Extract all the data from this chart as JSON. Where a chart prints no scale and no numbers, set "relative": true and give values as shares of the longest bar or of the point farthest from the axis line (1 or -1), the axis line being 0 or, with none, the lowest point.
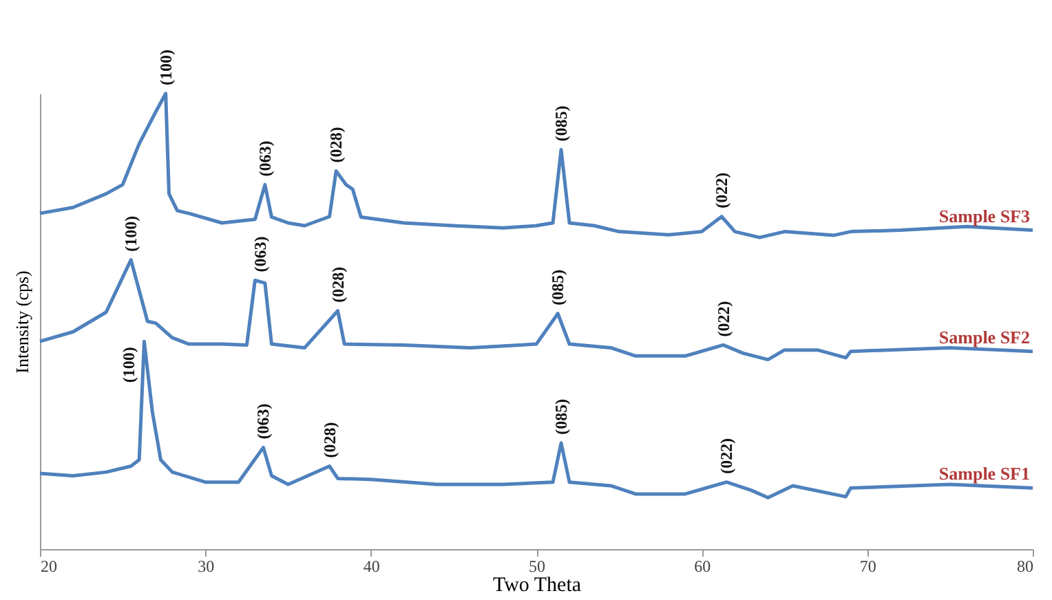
{
  "chart_data": {
    "type": "line",
    "xlabel": "Two Theta",
    "ylabel": "Intensity (cps)",
    "relative": true,
    "xlim": [
      20,
      80
    ],
    "xticks": [
      20,
      30,
      40,
      50,
      60,
      70,
      80
    ],
    "grid": false,
    "tick_labels": "x",
    "marker": "none",
    "line_style": "solid",
    "series": [
      {
        "name": "Sample SF3",
        "color": "#4f81bd",
        "x": [
          20,
          22,
          24,
          25,
          26,
          27,
          27.6,
          27.8,
          28.3,
          29,
          31,
          33,
          33.6,
          34,
          35,
          36,
          37.5,
          37.9,
          38.5,
          38.9,
          39.4,
          42,
          45,
          48,
          50,
          51,
          51.5,
          52,
          53.5,
          55,
          58,
          60,
          61.2,
          62,
          63.5,
          65,
          68,
          69,
          72,
          76,
          80
        ],
        "values": [
          0.737,
          0.75,
          0.78,
          0.8,
          0.89,
          0.96,
          1.0,
          0.78,
          0.743,
          0.737,
          0.716,
          0.724,
          0.8,
          0.729,
          0.716,
          0.71,
          0.73,
          0.83,
          0.8,
          0.79,
          0.729,
          0.716,
          0.71,
          0.705,
          0.71,
          0.716,
          0.877,
          0.716,
          0.71,
          0.697,
          0.69,
          0.697,
          0.73,
          0.697,
          0.684,
          0.697,
          0.689,
          0.697,
          0.7,
          0.708,
          0.7
        ]
      },
      {
        "name": "Sample SF2",
        "color": "#4f81bd",
        "x": [
          20,
          22,
          24,
          25.5,
          26.5,
          27,
          28,
          29,
          31,
          32.5,
          33,
          33.6,
          34,
          36,
          38,
          38.4,
          42,
          46,
          50,
          51.3,
          52,
          54.5,
          56,
          59,
          61.3,
          62.5,
          64,
          65,
          67,
          68.7,
          69,
          75,
          80
        ],
        "values": [
          0.456,
          0.477,
          0.52,
          0.635,
          0.5,
          0.496,
          0.464,
          0.45,
          0.45,
          0.448,
          0.59,
          0.584,
          0.45,
          0.442,
          0.523,
          0.45,
          0.448,
          0.442,
          0.45,
          0.517,
          0.45,
          0.442,
          0.424,
          0.424,
          0.448,
          0.43,
          0.416,
          0.437,
          0.437,
          0.42,
          0.434,
          0.442,
          0.434
        ]
      },
      {
        "name": "Sample SF1",
        "color": "#4f81bd",
        "x": [
          20,
          22,
          24,
          25.5,
          26,
          26.3,
          26.8,
          27.3,
          28,
          30,
          32,
          33.5,
          34,
          35,
          37.5,
          38,
          40,
          44,
          48,
          51,
          51.5,
          52,
          54.5,
          56,
          59,
          61.5,
          63,
          64,
          65.5,
          68.7,
          69,
          75,
          80
        ],
        "values": [
          0.166,
          0.161,
          0.169,
          0.182,
          0.196,
          0.456,
          0.3,
          0.196,
          0.169,
          0.147,
          0.147,
          0.223,
          0.161,
          0.142,
          0.182,
          0.155,
          0.153,
          0.142,
          0.142,
          0.147,
          0.233,
          0.147,
          0.139,
          0.121,
          0.121,
          0.147,
          0.129,
          0.113,
          0.139,
          0.115,
          0.134,
          0.142,
          0.134
        ]
      }
    ],
    "annotations": [
      {
        "text": "(100)",
        "x": 27.6,
        "y": 1.0
      },
      {
        "text": "(063)",
        "x": 33.6,
        "y": 0.8
      },
      {
        "text": "(028)",
        "x": 37.9,
        "y": 0.83
      },
      {
        "text": "(085)",
        "x": 51.5,
        "y": 0.877
      },
      {
        "text": "(022)",
        "x": 61.2,
        "y": 0.73
      },
      {
        "text": "(100)",
        "x": 25.5,
        "y": 0.635
      },
      {
        "text": "(063)",
        "x": 33.3,
        "y": 0.59
      },
      {
        "text": "(028)",
        "x": 38,
        "y": 0.523
      },
      {
        "text": "(085)",
        "x": 51.3,
        "y": 0.517
      },
      {
        "text": "(022)",
        "x": 61.3,
        "y": 0.448
      },
      {
        "text": "(100)",
        "x": 26.3,
        "y": 0.456
      },
      {
        "text": "(063)",
        "x": 33.5,
        "y": 0.223
      },
      {
        "text": "(028)",
        "x": 37.5,
        "y": 0.182
      },
      {
        "text": "(085)",
        "x": 51.5,
        "y": 0.233
      },
      {
        "text": "(022)",
        "x": 61.5,
        "y": 0.147
      }
    ]
  }
}
